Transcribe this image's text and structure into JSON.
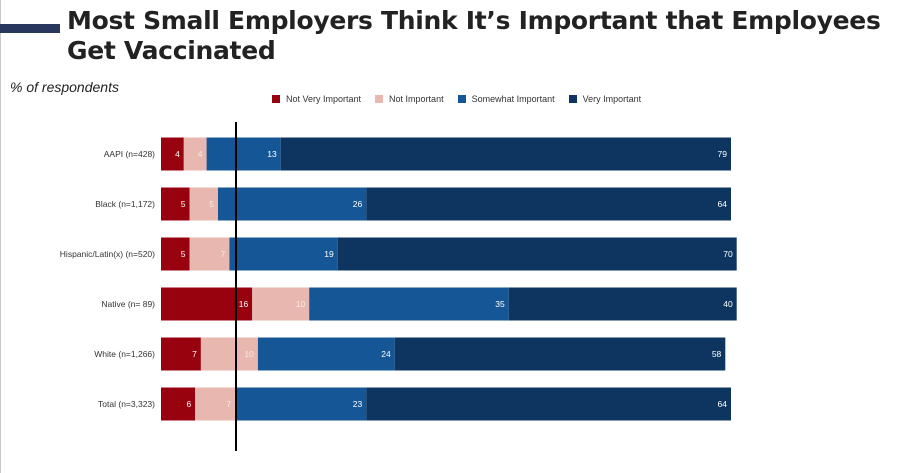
{
  "title": "Most Small Employers Think It’s Important that Employees Get Vaccinated",
  "subtitle": "% of respondents",
  "chart_data": {
    "type": "bar",
    "orientation": "horizontal",
    "stacked": true,
    "title": "Most Small Employers Think It’s Important that Employees Get Vaccinated",
    "ylabel": "% of respondents",
    "categories": [
      "AAPI (n=428)",
      "Black (n=1,172)",
      "Hispanic/Latin(x) (n=520)",
      "Native (n= 89)",
      "White (n=1,266)",
      "Total (n=3,323)"
    ],
    "series": [
      {
        "name": "Not Very Important",
        "color": "#98020f",
        "values": [
          4,
          5,
          5,
          16,
          7,
          6
        ]
      },
      {
        "name": "Not Important",
        "color": "#e8b7b0",
        "values": [
          4,
          5,
          7,
          10,
          10,
          7
        ]
      },
      {
        "name": "Somewhat Important",
        "color": "#155796",
        "values": [
          13,
          26,
          19,
          35,
          24,
          23
        ]
      },
      {
        "name": "Very Important",
        "color": "#0d3560",
        "values": [
          79,
          64,
          70,
          40,
          58,
          64
        ]
      }
    ],
    "legend_position": "top",
    "grid": false,
    "xlim": [
      0,
      100
    ]
  }
}
